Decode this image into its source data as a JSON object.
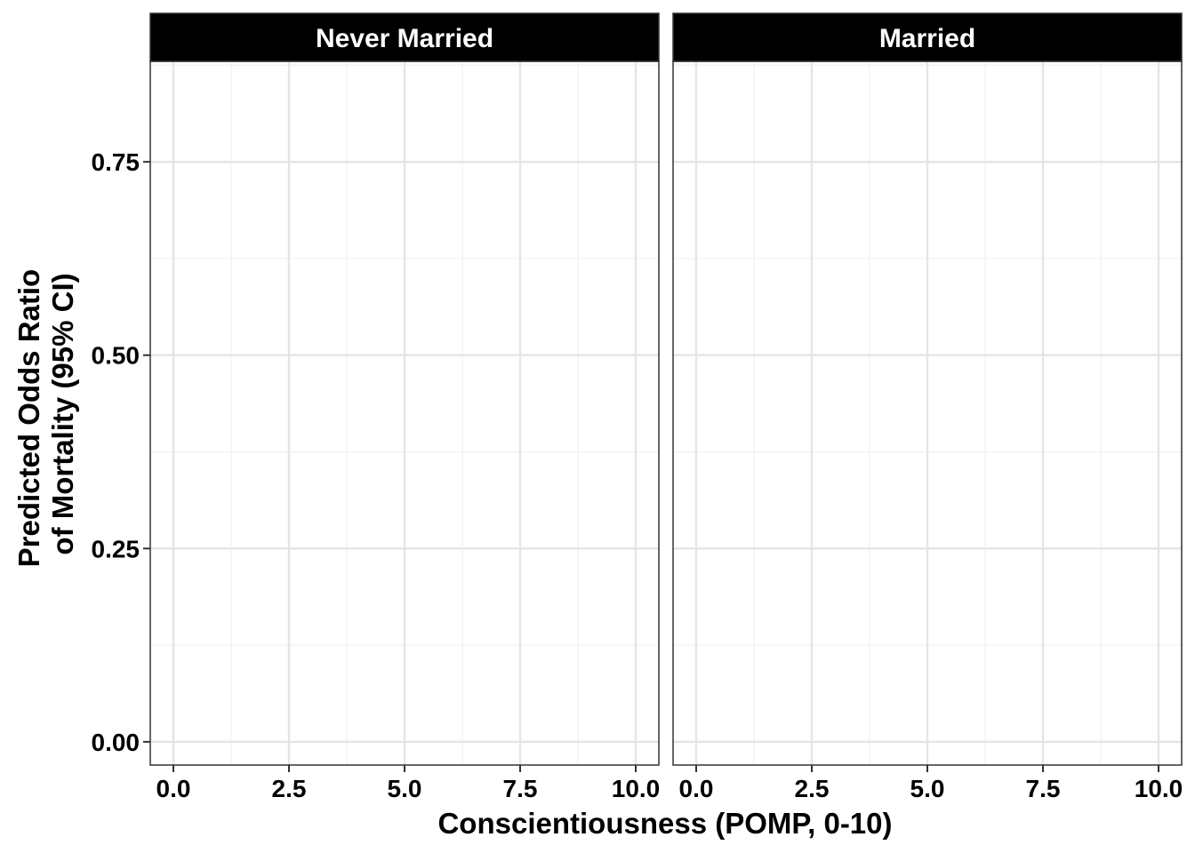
{
  "chart_data": {
    "type": "line",
    "facet_by": "marital status",
    "facets": [
      "Never Married",
      "Married"
    ],
    "xlabel": "Conscientiousness (POMP, 0-10)",
    "ylabel": [
      "Predicted Odds Ratio",
      "of Mortality (95% CI)"
    ],
    "xlim": [
      -0.5,
      10.5
    ],
    "ylim": [
      -0.03,
      0.88
    ],
    "x_ticks": [
      0,
      2.5,
      5,
      7.5,
      10
    ],
    "x_tick_labels": [
      "0.0",
      "2.5",
      "5.0",
      "7.5",
      "10.0"
    ],
    "y_ticks": [
      0,
      0.25,
      0.5,
      0.75
    ],
    "y_tick_labels": [
      "0.00",
      "0.25",
      "0.50",
      "0.75"
    ],
    "grid": true,
    "series": [],
    "colors": {
      "strip_background": "#000000",
      "strip_text": "#ffffff",
      "grid_major": "#e5e5e5",
      "grid_minor": "#f0f0f0",
      "panel_border": "#333333"
    }
  }
}
